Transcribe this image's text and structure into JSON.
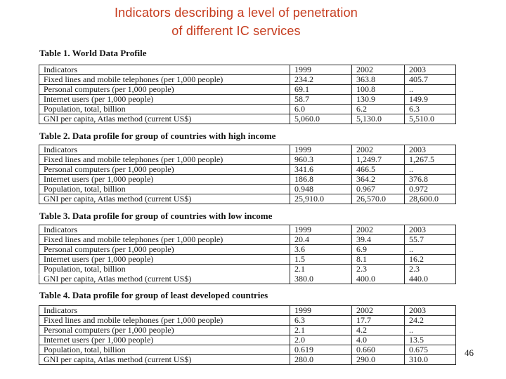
{
  "slide": {
    "title_line1": "Indicators describing a level of penetration",
    "title_line2": "of different IC services",
    "title_color": "#c63b1d",
    "page_number": "46"
  },
  "tables": [
    {
      "caption": "Table 1. World Data Profile",
      "columns": [
        "Indicators",
        "1999",
        "2002",
        "2003"
      ],
      "rows": [
        {
          "label": "Fixed lines and mobile telephones (per 1,000 people)",
          "values": [
            "234.2",
            "363.8",
            "405.7"
          ]
        },
        {
          "label": "Personal computers (per 1,000 people)",
          "values": [
            "69.1",
            "100.8",
            ".."
          ]
        },
        {
          "label": "Internet users (per 1,000 people)",
          "values": [
            "58.7",
            "130.9",
            "149.9"
          ]
        },
        {
          "label": "Population, total, billion",
          "values": [
            "6.0",
            "6.2",
            "6.3"
          ]
        },
        {
          "label": "GNI per capita, Atlas method (current US$)",
          "values": [
            "5,060.0",
            "5,130.0",
            "5,510.0"
          ]
        }
      ]
    },
    {
      "caption": "Table 2. Data profile for group of countries with high income",
      "columns": [
        "Indicators",
        "1999",
        "2002",
        "2003"
      ],
      "rows": [
        {
          "label": "Fixed lines and mobile telephones (per 1,000 people)",
          "values": [
            "960.3",
            "1,249.7",
            "1,267.5"
          ]
        },
        {
          "label": "Personal computers (per 1,000 people)",
          "values": [
            "341.6",
            "466.5",
            ".."
          ]
        },
        {
          "label": "Internet users (per 1,000 people)",
          "values": [
            "186.8",
            "364.2",
            "376.8"
          ]
        },
        {
          "label": "Population, total, billion",
          "values": [
            "0.948",
            "0.967",
            "0.972"
          ]
        },
        {
          "label": "GNI per capita, Atlas method (current US$)",
          "values": [
            "25,910.0",
            "26,570.0",
            "28,600.0"
          ]
        }
      ]
    },
    {
      "caption": "Table 3. Data profile for group of countries with low income",
      "columns": [
        "Indicators",
        "1999",
        "2002",
        "2003"
      ],
      "rows": [
        {
          "label": "Fixed lines and mobile telephones (per 1,000 people)",
          "values": [
            "20.4",
            "39.4",
            "55.7"
          ]
        },
        {
          "label": "Personal computers (per 1,000 people)",
          "values": [
            "3.6",
            "6.9",
            ".."
          ]
        },
        {
          "label": "Internet users (per 1,000 people)",
          "values": [
            "1.5",
            "8.1",
            "16.2"
          ]
        },
        {
          "label": "Population, total, billion",
          "values": [
            "2.1",
            "2.3",
            "2.3"
          ]
        },
        {
          "label": "GNI per capita, Atlas method (current US$)",
          "values": [
            "380.0",
            "400.0",
            "440.0"
          ]
        }
      ]
    },
    {
      "caption": "Table 4. Data profile for group of least developed countries",
      "columns": [
        "Indicators",
        "1999",
        "2002",
        "2003"
      ],
      "rows": [
        {
          "label": "Fixed lines and mobile telephones (per 1,000 people)",
          "values": [
            "6.3",
            "17.7",
            "24.2"
          ]
        },
        {
          "label": "Personal computers (per 1,000 people)",
          "values": [
            "2.1",
            "4.2",
            ".."
          ]
        },
        {
          "label": "Internet users (per 1,000 people)",
          "values": [
            "2.0",
            "4.0",
            "13.5"
          ]
        },
        {
          "label": "Population, total, billion",
          "values": [
            "0.619",
            "0.660",
            "0.675"
          ]
        },
        {
          "label": "GNI per capita, Atlas method (current US$)",
          "values": [
            "280.0",
            "290.0",
            "310.0"
          ]
        }
      ]
    }
  ]
}
